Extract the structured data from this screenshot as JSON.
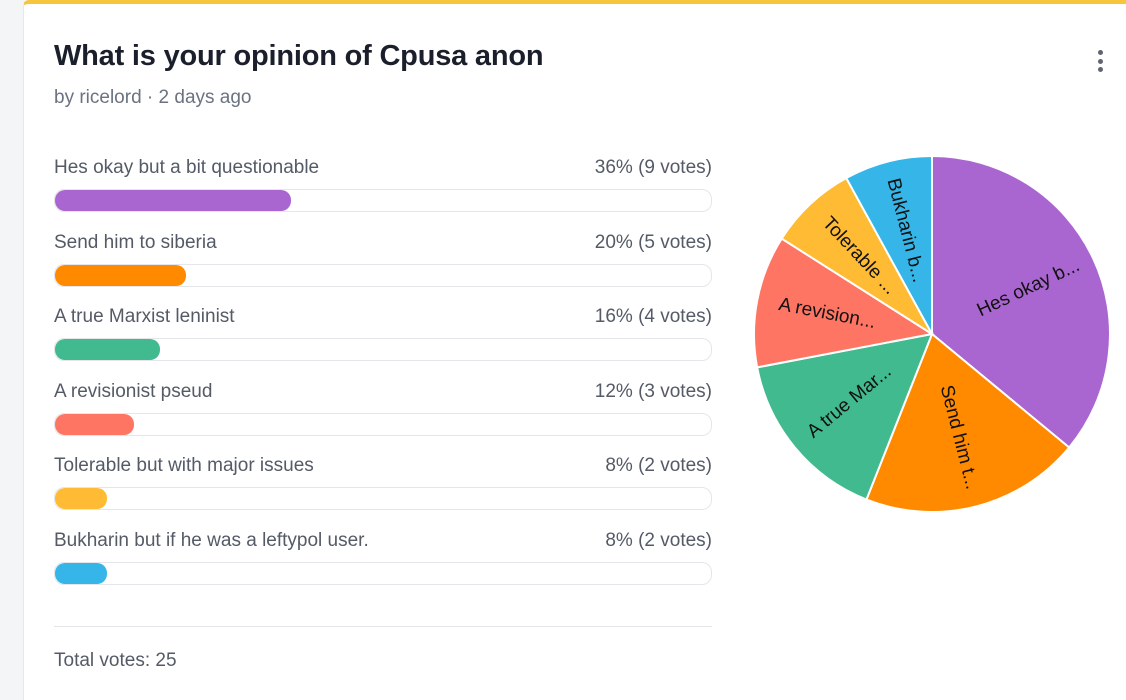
{
  "poll": {
    "title": "What is your opinion of Cpusa anon",
    "byline": "by ricelord · 2 days ago",
    "total_label": "Total votes: 25",
    "menu_icon": "vertical-ellipsis-icon",
    "options": [
      {
        "label": "Hes okay but a bit questionable",
        "count_label": "36% (9 votes)",
        "percent": 36,
        "votes": 9,
        "color": "#aa66d0",
        "pie_label": "Hes okay b..."
      },
      {
        "label": "Send him to siberia",
        "count_label": "20% (5 votes)",
        "percent": 20,
        "votes": 5,
        "color": "#ff8a00",
        "pie_label": "Send him t..."
      },
      {
        "label": "A true Marxist leninist",
        "count_label": "16% (4 votes)",
        "percent": 16,
        "votes": 4,
        "color": "#42ba8f",
        "pie_label": "A true Mar..."
      },
      {
        "label": "A revisionist pseud",
        "count_label": "12% (3 votes)",
        "percent": 12,
        "votes": 3,
        "color": "#ff7563",
        "pie_label": "A revision..."
      },
      {
        "label": "Tolerable but with major issues",
        "count_label": "8% (2 votes)",
        "percent": 8,
        "votes": 2,
        "color": "#ffbb33",
        "pie_label": "Tolerable ..."
      },
      {
        "label": "Bukharin but if he was a leftypol user.",
        "count_label": "8% (2 votes)",
        "percent": 8,
        "votes": 2,
        "color": "#36b6e8",
        "pie_label": "Bukharin b..."
      }
    ]
  },
  "chart_data": {
    "type": "pie",
    "categories": [
      "Hes okay but a bit questionable",
      "Send him to siberia",
      "A true Marxist leninist",
      "A revisionist pseud",
      "Tolerable but with major issues",
      "Bukharin but if he was a leftypol user."
    ],
    "values": [
      9,
      5,
      4,
      3,
      2,
      2
    ],
    "slice_labels": [
      "Hes okay b...",
      "Send him t...",
      "A true Mar...",
      "A revision...",
      "Tolerable ...",
      "Bukharin b..."
    ],
    "colors": [
      "#aa66d0",
      "#ff8a00",
      "#42ba8f",
      "#ff7563",
      "#ffbb33",
      "#36b6e8"
    ]
  }
}
